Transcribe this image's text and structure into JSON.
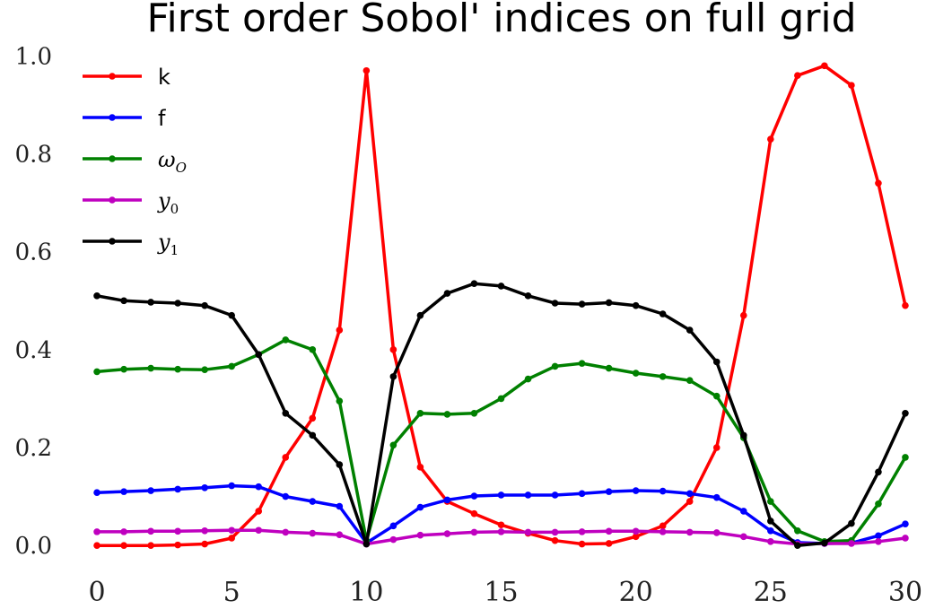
{
  "chart_data": {
    "type": "line",
    "title": "First order Sobol' indices on full grid",
    "xlabel": "",
    "ylabel": "",
    "xlim": [
      -1.5,
      31.2
    ],
    "ylim": [
      -0.04,
      1.03
    ],
    "xticks": [
      0,
      5,
      10,
      15,
      20,
      25,
      30
    ],
    "yticks": [
      0.0,
      0.2,
      0.4,
      0.6,
      0.8,
      1.0
    ],
    "ytick_labels": [
      "0.0",
      "0.2",
      "0.4",
      "0.6",
      "0.8",
      "1.0"
    ],
    "grid": false,
    "legend_position": "top-left",
    "x": [
      0,
      1,
      2,
      3,
      4,
      5,
      6,
      7,
      8,
      9,
      10,
      11,
      12,
      13,
      14,
      15,
      16,
      17,
      18,
      19,
      20,
      21,
      22,
      23,
      24,
      25,
      26,
      27,
      28,
      29,
      30
    ],
    "series": [
      {
        "name": "k",
        "color": "#ff0000",
        "sub": "",
        "values": [
          0.0,
          0.0,
          0.0,
          0.001,
          0.003,
          0.015,
          0.07,
          0.18,
          0.26,
          0.44,
          0.97,
          0.4,
          0.16,
          0.09,
          0.065,
          0.042,
          0.025,
          0.01,
          0.003,
          0.004,
          0.018,
          0.04,
          0.09,
          0.2,
          0.47,
          0.83,
          0.96,
          0.98,
          0.94,
          0.74,
          0.49
        ]
      },
      {
        "name": "f",
        "color": "#0000ff",
        "sub": "",
        "values": [
          0.108,
          0.11,
          0.112,
          0.115,
          0.118,
          0.122,
          0.12,
          0.1,
          0.09,
          0.08,
          0.005,
          0.04,
          0.078,
          0.093,
          0.101,
          0.103,
          0.103,
          0.103,
          0.106,
          0.11,
          0.112,
          0.111,
          0.106,
          0.098,
          0.07,
          0.03,
          0.006,
          0.004,
          0.005,
          0.02,
          0.044
        ]
      },
      {
        "name": "ω",
        "color": "#008000",
        "sub": "O",
        "values": [
          0.355,
          0.36,
          0.362,
          0.36,
          0.359,
          0.366,
          0.39,
          0.42,
          0.4,
          0.295,
          0.01,
          0.205,
          0.27,
          0.268,
          0.27,
          0.3,
          0.34,
          0.366,
          0.372,
          0.362,
          0.352,
          0.345,
          0.337,
          0.305,
          0.22,
          0.09,
          0.03,
          0.008,
          0.01,
          0.085,
          0.18
        ]
      },
      {
        "name": "y",
        "color": "#bf00bf",
        "sub": "0",
        "values": [
          0.028,
          0.028,
          0.029,
          0.029,
          0.03,
          0.031,
          0.031,
          0.027,
          0.025,
          0.022,
          0.003,
          0.012,
          0.021,
          0.024,
          0.027,
          0.028,
          0.027,
          0.027,
          0.028,
          0.029,
          0.029,
          0.028,
          0.027,
          0.026,
          0.018,
          0.008,
          0.003,
          0.004,
          0.004,
          0.008,
          0.015
        ]
      },
      {
        "name": "y",
        "color": "#000000",
        "sub": "1",
        "values": [
          0.51,
          0.5,
          0.497,
          0.495,
          0.49,
          0.47,
          0.39,
          0.27,
          0.225,
          0.165,
          0.003,
          0.345,
          0.47,
          0.515,
          0.535,
          0.53,
          0.51,
          0.495,
          0.493,
          0.496,
          0.49,
          0.473,
          0.44,
          0.375,
          0.225,
          0.05,
          0.0,
          0.005,
          0.045,
          0.15,
          0.27
        ]
      }
    ]
  }
}
